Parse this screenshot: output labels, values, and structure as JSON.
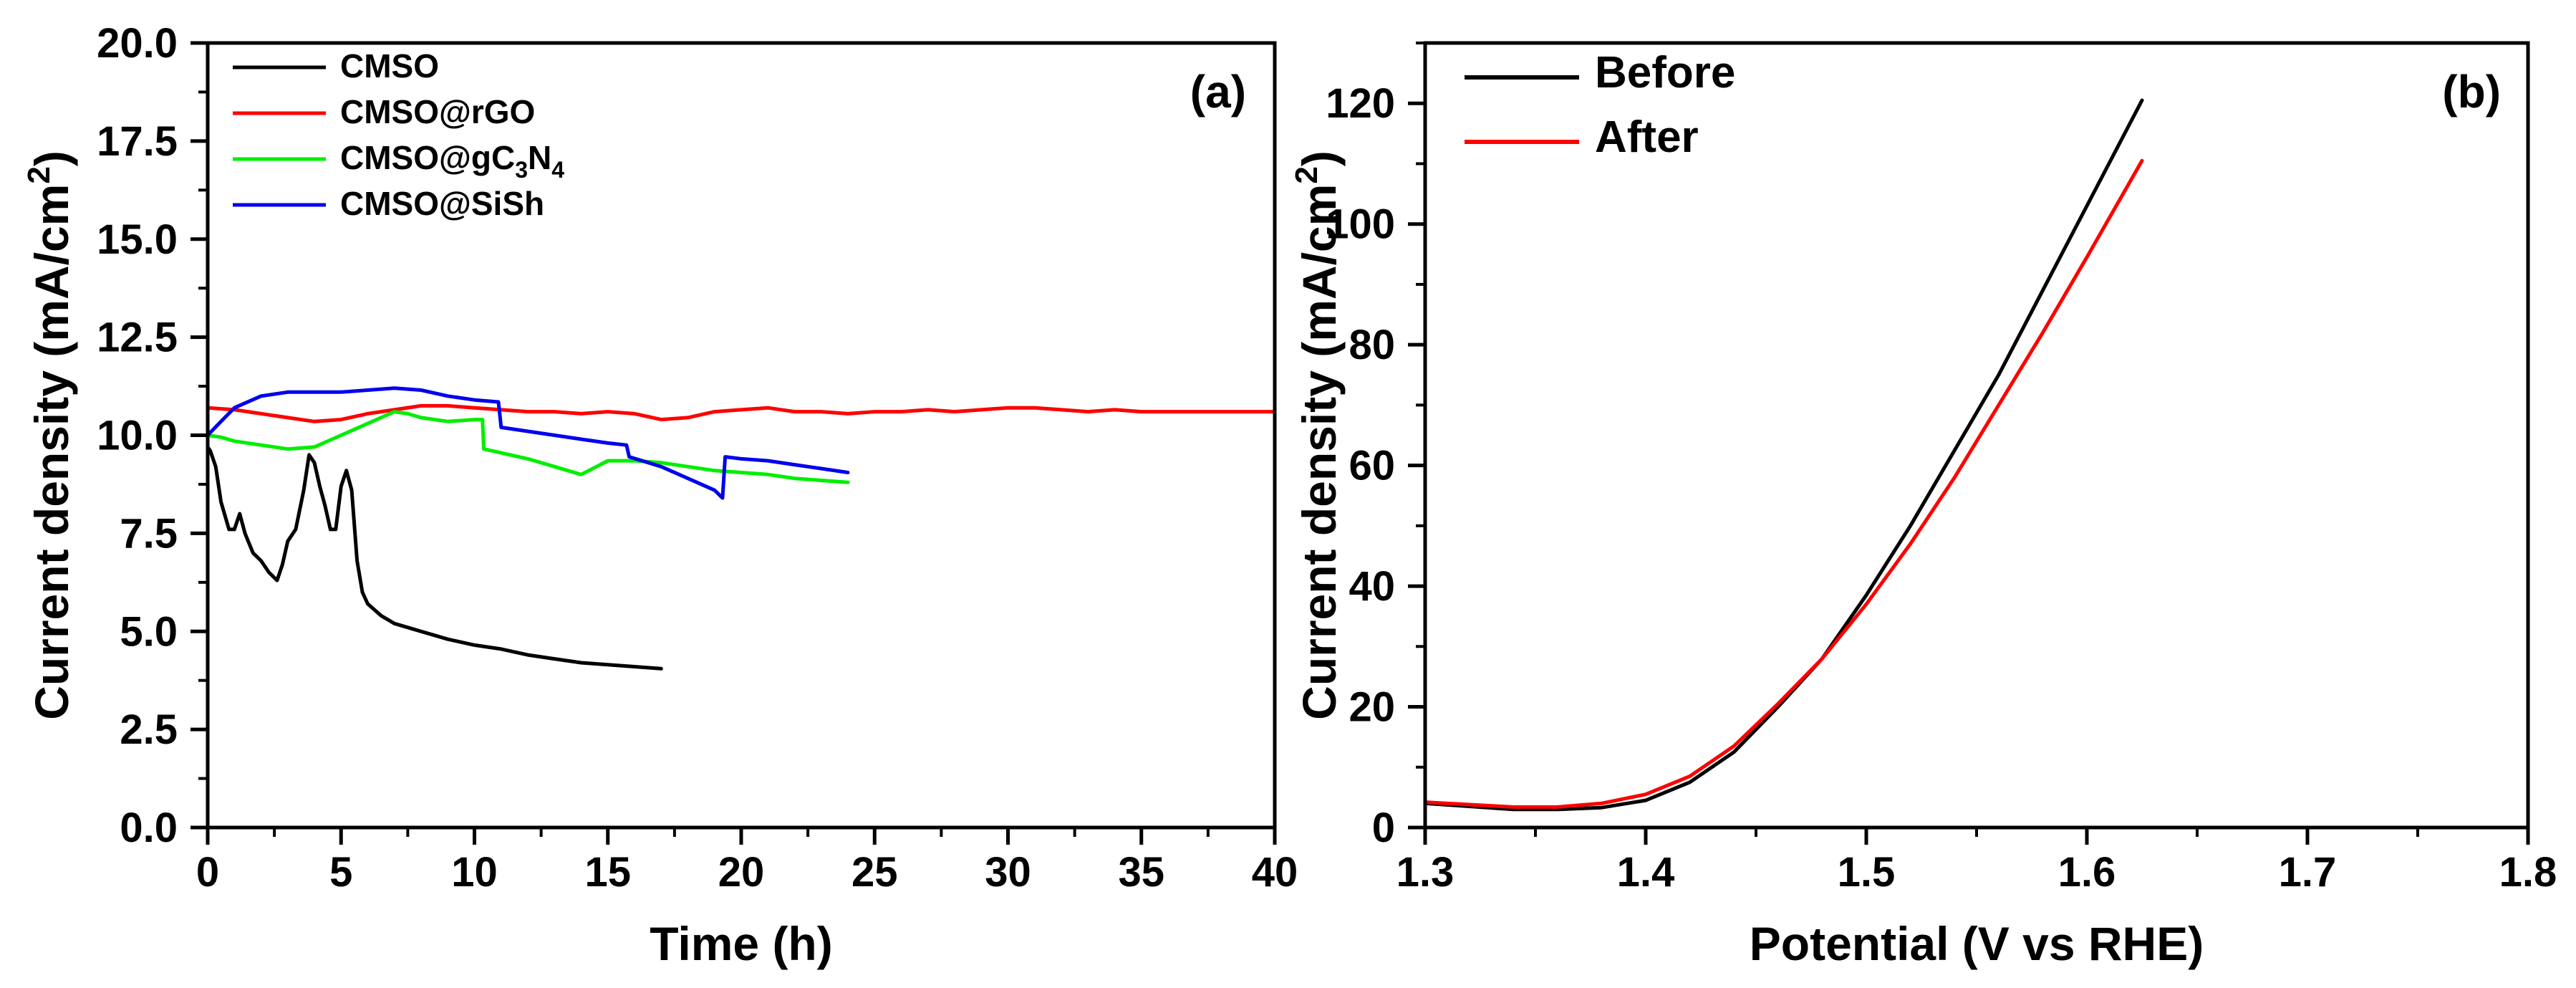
{
  "figure_label": "Stability and polarization figure",
  "chart_data": [
    {
      "id": "a",
      "type": "line",
      "panel_label": "(a)",
      "xlabel": "Time (h)",
      "ylabel_parts": [
        "Current density (mA/cm",
        "2",
        ")"
      ],
      "xlim": [
        0,
        40
      ],
      "ylim": [
        0,
        20
      ],
      "xticks": [
        0,
        5,
        10,
        15,
        20,
        25,
        30,
        35,
        40
      ],
      "xtick_labels": [
        "0",
        "5",
        "10",
        "15",
        "20",
        "25",
        "30",
        "35",
        "40"
      ],
      "yticks": [
        0,
        2.5,
        5,
        7.5,
        10,
        12.5,
        15,
        17.5,
        20
      ],
      "ytick_labels": [
        "0.0",
        "2.5",
        "5.0",
        "7.5",
        "10.0",
        "12.5",
        "15.0",
        "17.5",
        "20.0"
      ],
      "grid": false,
      "legend_position": "top-left",
      "series": [
        {
          "name": "CMSO",
          "name_parts": [
            "CMSO"
          ],
          "color": "#000000",
          "x": [
            0,
            0.1,
            0.3,
            0.5,
            0.8,
            1.0,
            1.2,
            1.4,
            1.7,
            2.0,
            2.3,
            2.6,
            2.8,
            3.0,
            3.3,
            3.6,
            3.8,
            4.0,
            4.2,
            4.4,
            4.6,
            4.8,
            5.0,
            5.2,
            5.4,
            5.6,
            5.8,
            6.0,
            6.5,
            7.0,
            8.0,
            9.0,
            10.0,
            11.0,
            12.0,
            13.0,
            14.0,
            15.0,
            16.0,
            17.0
          ],
          "y": [
            9.7,
            9.6,
            9.2,
            8.3,
            7.6,
            7.6,
            8.0,
            7.5,
            7.0,
            6.8,
            6.5,
            6.3,
            6.7,
            7.3,
            7.6,
            8.6,
            9.5,
            9.3,
            8.7,
            8.2,
            7.6,
            7.6,
            8.7,
            9.1,
            8.6,
            6.8,
            6.0,
            5.7,
            5.4,
            5.2,
            5.0,
            4.8,
            4.65,
            4.55,
            4.4,
            4.3,
            4.2,
            4.15,
            4.1,
            4.05
          ]
        },
        {
          "name": "CMSO@rGO",
          "name_parts": [
            "CMSO@rGO"
          ],
          "color": "#ff0000",
          "x": [
            0,
            1,
            2,
            3,
            4,
            5,
            6,
            7,
            8,
            9,
            10,
            11,
            12,
            13,
            14,
            15,
            16,
            17,
            18,
            19,
            20,
            21,
            22,
            23,
            24,
            25,
            26,
            27,
            28,
            29,
            30,
            31,
            32,
            33,
            34,
            35,
            36,
            37,
            38,
            39,
            40
          ],
          "y": [
            10.7,
            10.65,
            10.55,
            10.45,
            10.35,
            10.4,
            10.55,
            10.65,
            10.75,
            10.75,
            10.7,
            10.65,
            10.6,
            10.6,
            10.55,
            10.6,
            10.55,
            10.4,
            10.45,
            10.6,
            10.65,
            10.7,
            10.6,
            10.6,
            10.55,
            10.6,
            10.6,
            10.65,
            10.6,
            10.65,
            10.7,
            10.7,
            10.65,
            10.6,
            10.65,
            10.6,
            10.6,
            10.6,
            10.6,
            10.6,
            10.6
          ]
        },
        {
          "name": "CMSO@gC3N4",
          "name_parts": [
            "CMSO@gC",
            "3",
            "N",
            "4"
          ],
          "color": "#00ee00",
          "x": [
            0,
            0.5,
            1,
            2,
            3,
            4,
            5,
            6,
            7,
            7.5,
            8,
            9,
            10,
            10.3,
            10.35,
            11,
            12,
            13,
            14,
            15,
            16,
            17,
            18,
            19,
            20,
            21,
            22,
            23,
            24
          ],
          "y": [
            10.0,
            9.95,
            9.85,
            9.75,
            9.65,
            9.7,
            10.0,
            10.3,
            10.6,
            10.55,
            10.45,
            10.35,
            10.4,
            10.4,
            9.65,
            9.55,
            9.4,
            9.2,
            9.0,
            9.35,
            9.35,
            9.3,
            9.2,
            9.1,
            9.05,
            9.0,
            8.9,
            8.85,
            8.8
          ]
        },
        {
          "name": "CMSO@SiSh",
          "name_parts": [
            "CMSO@SiSh"
          ],
          "color": "#0000ee",
          "x": [
            0,
            0.5,
            1,
            2,
            3,
            4,
            5,
            6,
            7,
            8,
            9,
            10,
            10.9,
            11,
            12,
            13,
            14,
            15,
            15.7,
            15.8,
            17,
            18,
            19,
            19.3,
            19.4,
            20,
            21,
            22,
            23,
            24
          ],
          "y": [
            10.0,
            10.35,
            10.7,
            11.0,
            11.1,
            11.1,
            11.1,
            11.15,
            11.2,
            11.15,
            11.0,
            10.9,
            10.85,
            10.2,
            10.1,
            10.0,
            9.9,
            9.8,
            9.75,
            9.45,
            9.2,
            8.9,
            8.6,
            8.4,
            9.45,
            9.4,
            9.35,
            9.25,
            9.15,
            9.05
          ]
        }
      ]
    },
    {
      "id": "b",
      "type": "line",
      "panel_label": "(b)",
      "xlabel": "Potential (V vs RHE)",
      "ylabel_parts": [
        "Current density (mA/cm",
        "2",
        ")"
      ],
      "xlim": [
        1.3,
        1.8
      ],
      "ylim": [
        0,
        130
      ],
      "xticks": [
        1.3,
        1.4,
        1.5,
        1.6,
        1.7,
        1.8
      ],
      "xtick_labels": [
        "1.3",
        "1.4",
        "1.5",
        "1.6",
        "1.7",
        "1.8"
      ],
      "yticks": [
        0,
        20,
        40,
        60,
        80,
        100,
        120
      ],
      "ytick_labels": [
        "0",
        "20",
        "40",
        "60",
        "80",
        "100",
        "120"
      ],
      "grid": false,
      "legend_position": "top-left",
      "series": [
        {
          "name": "Before",
          "name_parts": [
            "Before"
          ],
          "color": "#000000",
          "x": [
            1.3,
            1.32,
            1.34,
            1.36,
            1.38,
            1.4,
            1.42,
            1.44,
            1.46,
            1.48,
            1.5,
            1.52,
            1.54,
            1.56,
            1.58,
            1.6,
            1.625
          ],
          "y": [
            4.0,
            3.5,
            3.0,
            3.0,
            3.3,
            4.5,
            7.5,
            12.5,
            20.0,
            28.0,
            38.5,
            50.0,
            62.5,
            75.0,
            89.0,
            103.0,
            120.5
          ]
        },
        {
          "name": "After",
          "name_parts": [
            "After"
          ],
          "color": "#ff0000",
          "x": [
            1.3,
            1.32,
            1.34,
            1.36,
            1.38,
            1.4,
            1.42,
            1.44,
            1.46,
            1.48,
            1.5,
            1.52,
            1.54,
            1.56,
            1.58,
            1.6,
            1.625
          ],
          "y": [
            4.2,
            3.8,
            3.4,
            3.4,
            4.0,
            5.5,
            8.5,
            13.5,
            20.5,
            28.0,
            37.0,
            47.0,
            58.0,
            70.0,
            82.0,
            94.5,
            110.5
          ]
        }
      ]
    }
  ]
}
